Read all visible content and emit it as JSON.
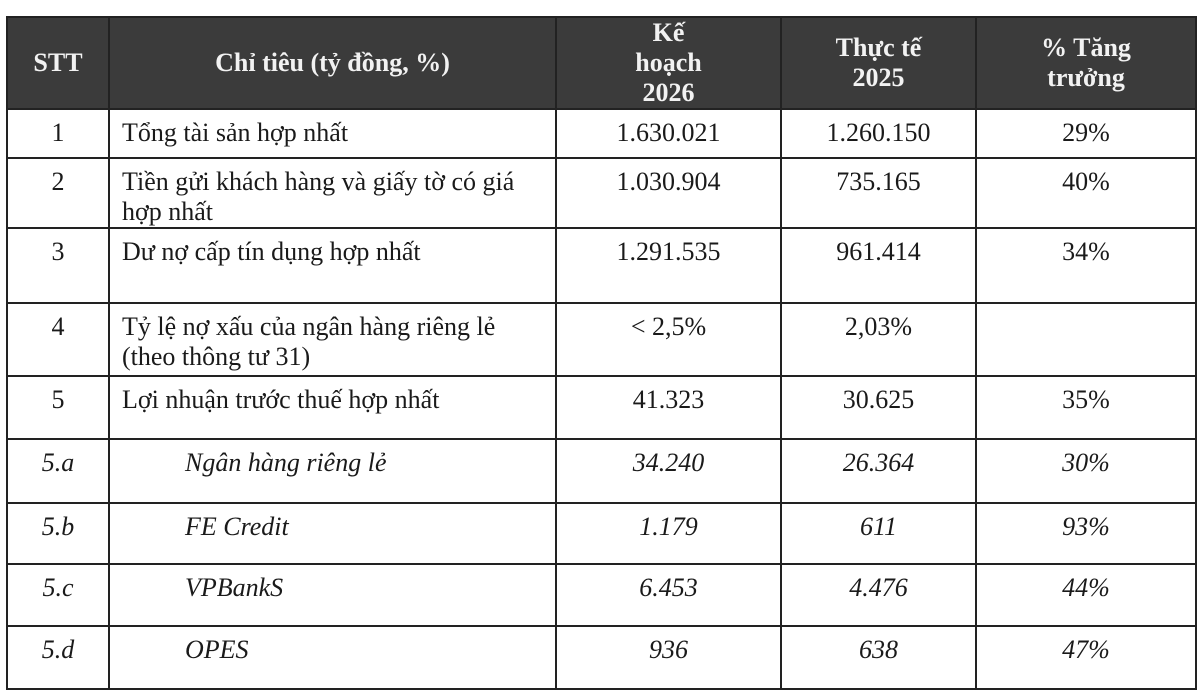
{
  "table": {
    "headers": [
      "STT",
      "Chỉ tiêu (tỷ đồng, %)",
      "Kế hoạch 2026",
      "Thực tế 2025",
      "% Tăng trưởng"
    ],
    "rows": [
      {
        "stt": "1",
        "name": "Tổng tài sản hợp nhất",
        "plan": "1.630.021",
        "actual": "1.260.150",
        "growth": "29%"
      },
      {
        "stt": "2",
        "name": "Tiền gửi khách hàng và giấy tờ có giá hợp nhất",
        "plan": "1.030.904",
        "actual": "735.165",
        "growth": "40%"
      },
      {
        "stt": "3",
        "name": "Dư nợ cấp tín dụng hợp nhất",
        "plan": "1.291.535",
        "actual": "961.414",
        "growth": "34%"
      },
      {
        "stt": "4",
        "name": "Tỷ lệ nợ xấu của ngân hàng riêng lẻ (theo thông tư 31)",
        "plan": "< 2,5%",
        "actual": "2,03%",
        "growth": ""
      },
      {
        "stt": "5",
        "name": "Lợi nhuận trước thuế hợp nhất",
        "plan": "41.323",
        "actual": "30.625",
        "growth": "35%"
      },
      {
        "stt": "5.a",
        "name": "Ngân hàng riêng lẻ",
        "plan": "34.240",
        "actual": "26.364",
        "growth": "30%"
      },
      {
        "stt": "5.b",
        "name": "FE Credit",
        "plan": "1.179",
        "actual": "611",
        "growth": "93%"
      },
      {
        "stt": "5.c",
        "name": "VPBankS",
        "plan": "6.453",
        "actual": "4.476",
        "growth": "44%"
      },
      {
        "stt": "5.d",
        "name": "OPES",
        "plan": "936",
        "actual": "638",
        "growth": "47%"
      }
    ]
  }
}
